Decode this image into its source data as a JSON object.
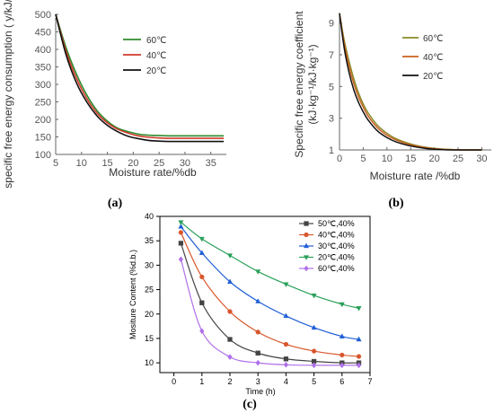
{
  "chart_data": [
    {
      "type": "line",
      "caption": "(a)",
      "ylabel": "specific free energy consumption ( y/kJ/kg)",
      "xlabel": "Moisture rate/%db",
      "xlim": [
        5,
        38
      ],
      "ylim": [
        100,
        500
      ],
      "xticks": [
        5,
        10,
        15,
        20,
        25,
        30,
        35
      ],
      "yticks": [
        100,
        150,
        200,
        250,
        300,
        350,
        400,
        450,
        500
      ],
      "legend_position": "upper-right",
      "series": [
        {
          "name": "60℃",
          "color": "#2e8b2e",
          "x": [
            5,
            7,
            9,
            11,
            13,
            15,
            17,
            19,
            21,
            23,
            25,
            27,
            29,
            31,
            33,
            35,
            37.5
          ],
          "y": [
            500,
            405,
            330,
            270,
            225,
            195,
            175,
            165,
            158,
            155,
            154,
            153,
            153,
            153,
            153,
            153,
            153
          ]
        },
        {
          "name": "40℃",
          "color": "#d03a2a",
          "x": [
            5,
            7,
            9,
            11,
            13,
            15,
            17,
            19,
            21,
            23,
            25,
            27,
            29,
            31,
            33,
            35,
            37.5
          ],
          "y": [
            500,
            395,
            318,
            260,
            218,
            190,
            172,
            161,
            153,
            149,
            147,
            146,
            146,
            146,
            146,
            146,
            146
          ]
        },
        {
          "name": "20℃",
          "color": "#111111",
          "x": [
            5,
            7,
            9,
            11,
            13,
            15,
            17,
            19,
            21,
            23,
            25,
            27,
            29,
            31,
            33,
            35,
            37.5
          ],
          "y": [
            500,
            385,
            305,
            250,
            210,
            183,
            165,
            152,
            145,
            140,
            138,
            137,
            137,
            137,
            137,
            137,
            137
          ]
        }
      ]
    },
    {
      "type": "line",
      "caption": "(b)",
      "ylabel": "Specific free energy coefficient",
      "ylabel2": "(kJ·kg⁻¹/kJ·kg⁻¹)",
      "xlabel": "Moisture rate /%db",
      "xlim": [
        0,
        32
      ],
      "ylim": [
        1,
        10
      ],
      "xticks": [
        0,
        5,
        10,
        15,
        20,
        25,
        30
      ],
      "yticks": [
        1,
        3,
        5,
        7,
        9
      ],
      "legend_position": "upper-right",
      "series": [
        {
          "name": "60℃",
          "color": "#8a8a2a",
          "x": [
            0,
            1,
            2,
            3,
            4,
            5,
            6,
            8,
            10,
            12,
            15,
            18,
            21,
            24,
            27,
            30
          ],
          "y": [
            9.6,
            7.9,
            6.6,
            5.5,
            4.6,
            3.9,
            3.35,
            2.55,
            2.05,
            1.7,
            1.38,
            1.18,
            1.07,
            1.02,
            1.0,
            1.0
          ]
        },
        {
          "name": "40℃",
          "color": "#c9611f",
          "x": [
            0,
            1,
            2,
            3,
            4,
            5,
            6,
            8,
            10,
            12,
            15,
            18,
            21,
            24,
            27,
            30
          ],
          "y": [
            9.6,
            7.7,
            6.3,
            5.2,
            4.35,
            3.7,
            3.15,
            2.4,
            1.93,
            1.62,
            1.32,
            1.15,
            1.05,
            1.01,
            1.0,
            1.0
          ]
        },
        {
          "name": "20℃",
          "color": "#111111",
          "x": [
            0,
            1,
            2,
            3,
            4,
            5,
            6,
            8,
            10,
            12,
            15,
            18,
            21,
            24,
            27,
            30
          ],
          "y": [
            9.6,
            7.4,
            5.9,
            4.8,
            4.0,
            3.4,
            2.9,
            2.2,
            1.78,
            1.5,
            1.25,
            1.1,
            1.03,
            1.0,
            1.0,
            1.0
          ]
        }
      ]
    },
    {
      "type": "scatter",
      "caption": "(c)",
      "ylabel": "Mositure Content (%d.b.)",
      "xlabel": "Time (h)",
      "xlim": [
        -0.5,
        7
      ],
      "ylim": [
        8,
        40
      ],
      "xticks": [
        0,
        1,
        2,
        3,
        4,
        5,
        6,
        7
      ],
      "yticks": [
        10,
        15,
        20,
        25,
        30,
        35,
        40
      ],
      "legend_position": "upper-right",
      "x": [
        0.25,
        1,
        2,
        3,
        4,
        5,
        6,
        6.6
      ],
      "series": [
        {
          "name": "50℃,40%",
          "color": "#444444",
          "marker": "square",
          "values": [
            34.5,
            22.3,
            14.8,
            12.0,
            10.8,
            10.3,
            10.0,
            10.0
          ]
        },
        {
          "name": "40℃,40%",
          "color": "#d9572c",
          "marker": "circle",
          "values": [
            36.7,
            27.6,
            20.5,
            16.3,
            13.8,
            12.4,
            11.6,
            11.3
          ]
        },
        {
          "name": "30℃,40%",
          "color": "#1f5fd6",
          "marker": "triangle-up",
          "values": [
            37.9,
            32.5,
            26.6,
            22.6,
            19.6,
            17.2,
            15.4,
            14.8
          ]
        },
        {
          "name": "20℃,40%",
          "color": "#2aa05a",
          "marker": "triangle-down",
          "values": [
            38.8,
            35.4,
            32.0,
            28.7,
            26.1,
            23.8,
            22.0,
            21.2
          ]
        },
        {
          "name": "60℃,40%",
          "color": "#b070e8",
          "marker": "diamond",
          "values": [
            31.2,
            16.5,
            11.2,
            10.0,
            9.6,
            9.5,
            9.5,
            9.5
          ]
        }
      ]
    }
  ]
}
